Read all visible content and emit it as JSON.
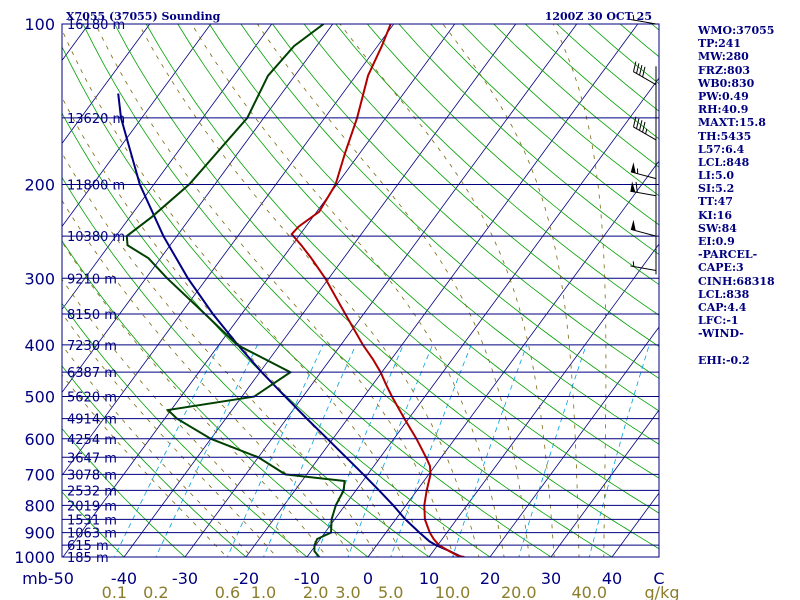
{
  "header": {
    "title": "X7055 (37055) Sounding",
    "valid_time": "1200Z 30 OCT 25"
  },
  "indices": [
    "WMO:37055",
    "TP:241",
    "MW:280",
    "FRZ:803",
    "WB0:830",
    "PW:0.49",
    "RH:40.9",
    "MAXT:15.8",
    "TH:5435",
    "L57:6.4",
    "LCL:848",
    "LI:5.0",
    "SI:5.2",
    "TT:47",
    "KI:16",
    "SW:84",
    "EI:0.9",
    "-PARCEL-",
    "CAPE:3",
    "CINH:68318",
    "LCL:838",
    "CAP:4.4",
    "LFC:-1",
    "-WIND-",
    "",
    "EHI:-0.2"
  ],
  "colors": {
    "isobar": "#000080",
    "isotherm": "#000080",
    "dry_adiabat": "#00a000",
    "moist_adiabat": "#7a6a10",
    "mixing_ratio": "#00a0e0",
    "temperature": "#b00000",
    "dewpoint": "#004000",
    "parcel": "#000080",
    "barb": "#000000"
  },
  "chart_data": {
    "type": "skew-t",
    "pressure_axis_unit": "mb",
    "temperature_axis_unit": "C",
    "mixing_ratio_unit": "g/kg",
    "pressure_levels": [
      {
        "p": 100,
        "label": "100",
        "height": "16180 m"
      },
      {
        "p": 150,
        "label": "",
        "height": "13620 m"
      },
      {
        "p": 200,
        "label": "200",
        "height": "11800 m"
      },
      {
        "p": 250,
        "label": "",
        "height": "10380 m"
      },
      {
        "p": 300,
        "label": "300",
        "height": "9210 m"
      },
      {
        "p": 350,
        "label": "",
        "height": "8150 m"
      },
      {
        "p": 400,
        "label": "400",
        "height": "7230 m"
      },
      {
        "p": 450,
        "label": "",
        "height": "6387 m"
      },
      {
        "p": 500,
        "label": "500",
        "height": "5620 m"
      },
      {
        "p": 550,
        "label": "",
        "height": "4914 m"
      },
      {
        "p": 600,
        "label": "600",
        "height": "4254 m"
      },
      {
        "p": 650,
        "label": "",
        "height": "3647 m"
      },
      {
        "p": 700,
        "label": "700",
        "height": "3078 m"
      },
      {
        "p": 750,
        "label": "",
        "height": "2532 m"
      },
      {
        "p": 800,
        "label": "800",
        "height": "2019 m"
      },
      {
        "p": 850,
        "label": "",
        "height": "1531 m"
      },
      {
        "p": 900,
        "label": "900",
        "height": "1063 m"
      },
      {
        "p": 950,
        "label": "",
        "height": "615 m"
      },
      {
        "p": 1000,
        "label": "1000",
        "height": "185 m"
      }
    ],
    "temperature_ticks": [
      -50,
      -40,
      -30,
      -20,
      -10,
      0,
      10,
      20,
      30,
      40
    ],
    "temperature_tick_labels": [
      "mb-50",
      "-40",
      "-30",
      "-20",
      "-10",
      "0",
      "10",
      "20",
      "30",
      "40",
      "C"
    ],
    "mixing_ratio_ticks": [
      0.1,
      0.2,
      0.6,
      1.0,
      2.0,
      3.0,
      5.0,
      10.0,
      20.0,
      40.0
    ],
    "mixing_ratio_labels": [
      "0.1",
      "0.2",
      "0.6",
      "1.0",
      "2.0",
      "3.0",
      "5.0",
      "10.0",
      "20.0",
      "40.0",
      "g/kg"
    ],
    "temperature_profile": [
      [
        1000,
        15.8
      ],
      [
        995,
        14.6
      ],
      [
        975,
        12.6
      ],
      [
        950,
        10.2
      ],
      [
        925,
        8.6
      ],
      [
        900,
        7.2
      ],
      [
        850,
        4.8
      ],
      [
        800,
        3.0
      ],
      [
        750,
        1.6
      ],
      [
        700,
        0.3
      ],
      [
        675,
        -0.8
      ],
      [
        650,
        -2.5
      ],
      [
        600,
        -6.3
      ],
      [
        550,
        -10.7
      ],
      [
        500,
        -15.4
      ],
      [
        475,
        -17.8
      ],
      [
        450,
        -20.2
      ],
      [
        425,
        -23.1
      ],
      [
        400,
        -26.4
      ],
      [
        350,
        -33.0
      ],
      [
        300,
        -40.6
      ],
      [
        275,
        -45.3
      ],
      [
        260,
        -48.5
      ],
      [
        248,
        -51.4
      ],
      [
        240,
        -51.2
      ],
      [
        225,
        -49.6
      ],
      [
        200,
        -50.2
      ],
      [
        175,
        -52.4
      ],
      [
        150,
        -54.7
      ],
      [
        125,
        -58.0
      ],
      [
        110,
        -59.3
      ],
      [
        100,
        -60.5
      ]
    ],
    "dewpoint_profile": [
      [
        1000,
        -8.0
      ],
      [
        975,
        -9.5
      ],
      [
        950,
        -10.2
      ],
      [
        925,
        -10.5
      ],
      [
        900,
        -9.0
      ],
      [
        850,
        -10.5
      ],
      [
        800,
        -11.5
      ],
      [
        750,
        -12.0
      ],
      [
        720,
        -13.0
      ],
      [
        700,
        -23.5
      ],
      [
        650,
        -30.0
      ],
      [
        600,
        -40.0
      ],
      [
        550,
        -48.0
      ],
      [
        530,
        -50.5
      ],
      [
        500,
        -38.0
      ],
      [
        450,
        -35.0
      ],
      [
        400,
        -47.0
      ],
      [
        350,
        -56.0
      ],
      [
        330,
        -60.0
      ],
      [
        300,
        -66.5
      ],
      [
        275,
        -72.0
      ],
      [
        260,
        -77.0
      ],
      [
        250,
        -78.2
      ],
      [
        230,
        -76.4
      ],
      [
        200,
        -74.2
      ],
      [
        175,
        -73.5
      ],
      [
        150,
        -72.7
      ],
      [
        125,
        -74.4
      ],
      [
        110,
        -73.7
      ],
      [
        100,
        -71.5
      ]
    ],
    "parcel_profile": [
      [
        1000,
        15.4
      ],
      [
        970,
        12.1
      ],
      [
        950,
        9.7
      ],
      [
        935,
        8.2
      ],
      [
        900,
        5.5
      ],
      [
        850,
        1.6
      ],
      [
        800,
        -2.1
      ],
      [
        750,
        -6.2
      ],
      [
        700,
        -10.7
      ],
      [
        650,
        -15.6
      ],
      [
        600,
        -20.9
      ],
      [
        550,
        -26.7
      ],
      [
        500,
        -32.9
      ],
      [
        450,
        -39.7
      ],
      [
        400,
        -46.9
      ],
      [
        350,
        -54.7
      ],
      [
        300,
        -63.1
      ],
      [
        250,
        -72.2
      ],
      [
        200,
        -82.3
      ],
      [
        150,
        -93.4
      ],
      [
        135,
        -96.8
      ]
    ],
    "wind_barbs": [
      {
        "p": 100,
        "dir": 280,
        "kt": 5
      },
      {
        "p": 130,
        "dir": 300,
        "kt": 40
      },
      {
        "p": 165,
        "dir": 300,
        "kt": 45
      },
      {
        "p": 195,
        "dir": 285,
        "kt": 55
      },
      {
        "p": 210,
        "dir": 280,
        "kt": 60
      },
      {
        "p": 250,
        "dir": 285,
        "kt": 50
      },
      {
        "p": 290,
        "dir": 280,
        "kt": 5
      }
    ]
  }
}
